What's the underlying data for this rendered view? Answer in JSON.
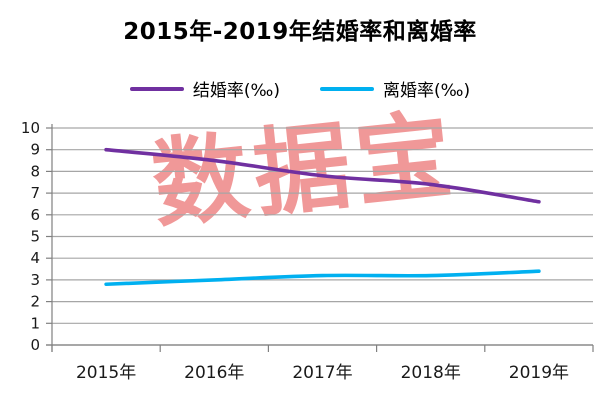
{
  "title": "2015年-2019年结婚率和离婚率",
  "watermark": "数据宝",
  "legend": [
    {
      "label": "结婚率(‰)",
      "color": "#7030A0"
    },
    {
      "label": "离婚率(‰)",
      "color": "#00B0F0"
    }
  ],
  "chart_data": {
    "type": "line",
    "categories": [
      "2015年",
      "2016年",
      "2017年",
      "2018年",
      "2019年"
    ],
    "series": [
      {
        "name": "结婚率(‰)",
        "color": "#7030A0",
        "values": [
          9.0,
          8.5,
          7.8,
          7.4,
          6.6
        ]
      },
      {
        "name": "离婚率(‰)",
        "color": "#00B0F0",
        "values": [
          2.8,
          3.0,
          3.2,
          3.2,
          3.4
        ]
      }
    ],
    "title": "2015年-2019年结婚率和离婚率",
    "xlabel": "",
    "ylabel": "",
    "ylim": [
      0,
      10
    ],
    "ytick_step": 1,
    "grid": true,
    "legend_position": "top",
    "smooth_lines": true
  },
  "colors": {
    "grid": "#a6a6a6",
    "axis": "#808080",
    "tick_label": "#1a1a1a",
    "watermark": "#e85a5a"
  }
}
